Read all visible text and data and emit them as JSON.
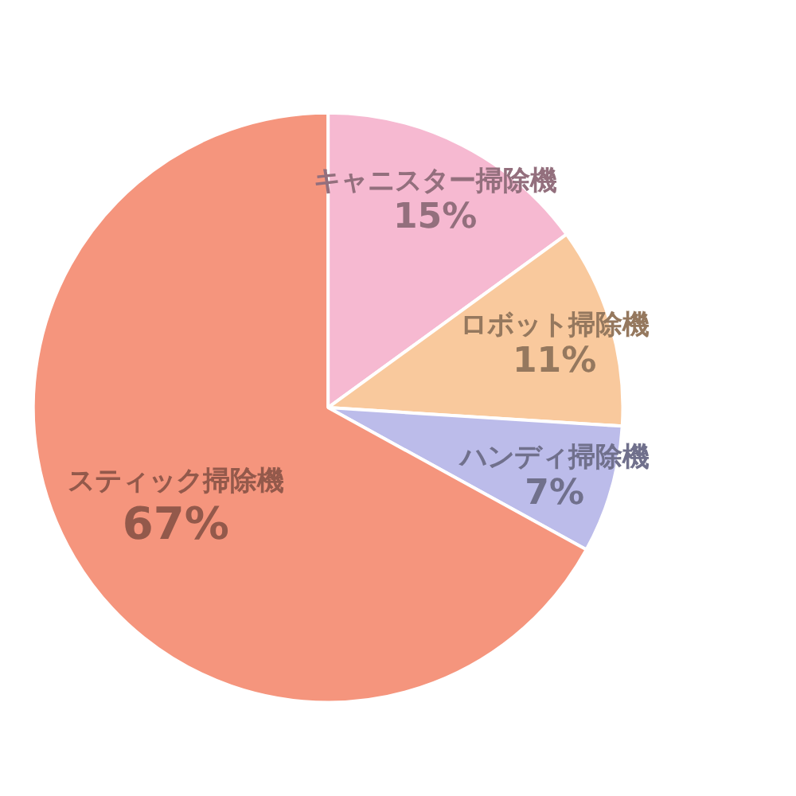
{
  "chart_data": {
    "type": "pie",
    "categories": [
      "キャニスター掃除機",
      "ロボット掃除機",
      "ハンディ掃除機",
      "スティック掃除機"
    ],
    "values": [
      15,
      11,
      7,
      67
    ],
    "value_labels": [
      "15%",
      "11%",
      "7%",
      "67%"
    ],
    "colors": [
      "#f6b9d1",
      "#f9c99d",
      "#bcbcea",
      "#f5957d"
    ]
  }
}
